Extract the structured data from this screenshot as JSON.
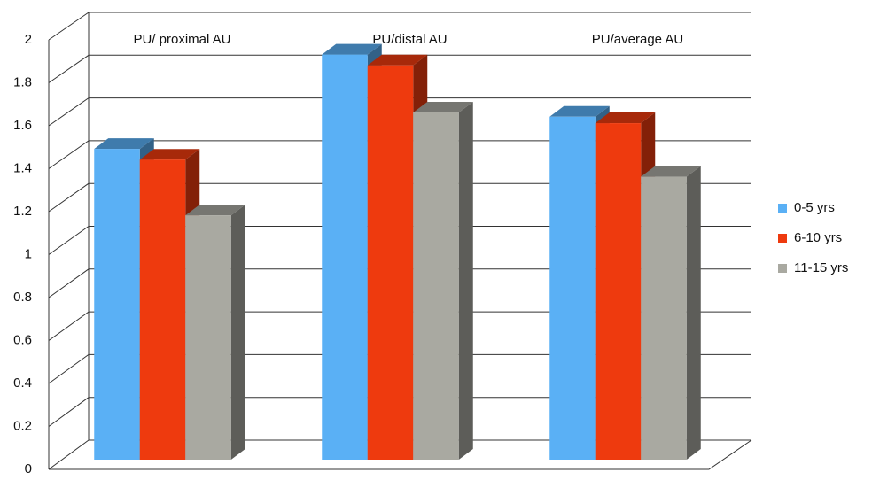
{
  "chart_data": {
    "type": "bar3d",
    "categories": [
      "PU/ proximal AU",
      "PU/distal AU",
      "PU/average AU"
    ],
    "series": [
      {
        "name": "0-5 yrs",
        "color": "#5ab0f5",
        "values": [
          1.45,
          1.89,
          1.6
        ]
      },
      {
        "name": "6-10 yrs",
        "color": "#ee3a0e",
        "values": [
          1.4,
          1.84,
          1.57
        ]
      },
      {
        "name": "11-15 yrs",
        "color": "#a9a9a1",
        "values": [
          1.14,
          1.62,
          1.32
        ]
      }
    ],
    "ylim": [
      0,
      2
    ],
    "yticks": [
      0,
      0.2,
      0.4,
      0.6,
      0.8,
      1,
      1.2,
      1.4,
      1.6,
      1.8,
      2
    ],
    "grid": true,
    "legend": "right"
  }
}
